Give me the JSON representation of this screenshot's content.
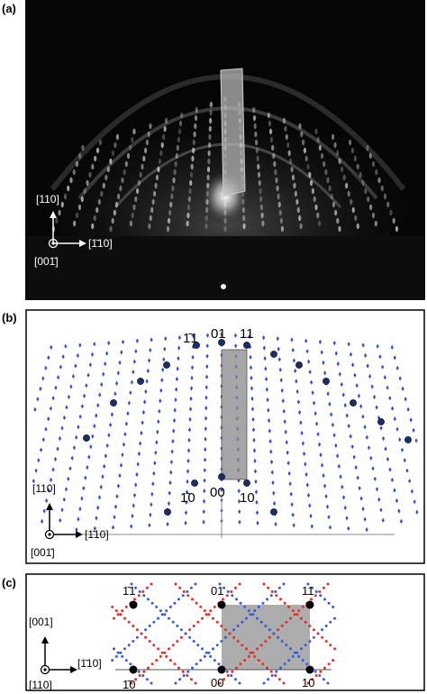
{
  "panels": {
    "a": {
      "label": "(a)",
      "axes": {
        "vertical": "[110]",
        "horizontal": "[1̄10]",
        "out_of_plane": "[001̄]"
      }
    },
    "b": {
      "label": "(b)",
      "spot_labels": [
        "1̄1",
        "01",
        "11",
        "1̄0",
        "00",
        "10"
      ],
      "axes": {
        "vertical": "[110]",
        "horizontal": "[1̄10]",
        "out_of_plane": "[001̄]"
      }
    },
    "c": {
      "label": "(c)",
      "spot_labels": [
        "1̄1",
        "01",
        "11",
        "1̄0",
        "00",
        "10"
      ],
      "axes": {
        "vertical": "[001]",
        "horizontal": "[1̄10]",
        "out_of_plane": "[110]"
      }
    }
  },
  "colors": {
    "rheed_background": "#000000",
    "lattice_dots": "#2b4fd8",
    "spot_marker": "#1a2e6e",
    "highlight_box": "#9a9a9a",
    "red_dots": "#e0302a",
    "blue_dots": "#3a5ad8"
  }
}
